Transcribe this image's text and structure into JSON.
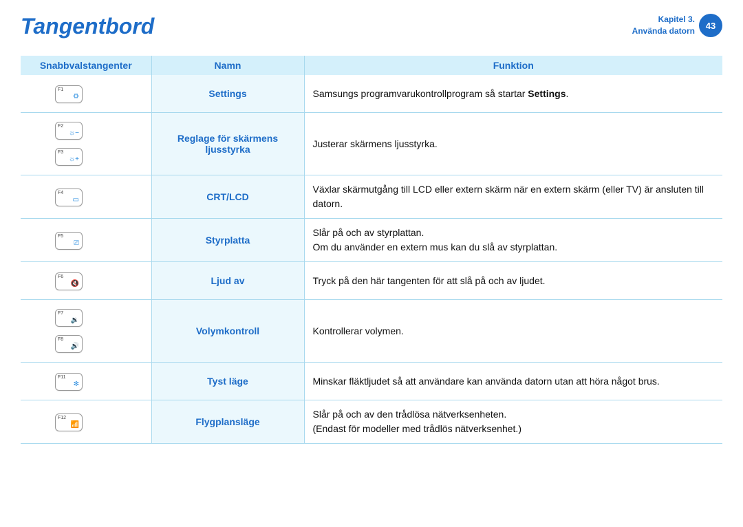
{
  "header": {
    "title": "Tangentbord",
    "chapter_line1": "Kapitel 3.",
    "chapter_line2": "Använda datorn",
    "page_number": "43"
  },
  "table": {
    "columns": {
      "keys": "Snabbvalstangenter",
      "name": "Namn",
      "func": "Funktion"
    },
    "colors": {
      "header_bg": "#d4f0fb",
      "name_bg": "#ebf8fd",
      "accent": "#1e6dc8",
      "border": "#a8d9ee",
      "key_icon": "#2a8de0"
    },
    "rows": [
      {
        "keys": [
          {
            "label": "F1",
            "icon": "⚙"
          }
        ],
        "name": "Settings",
        "func_pre": "Samsungs programvarukontrollprogram så startar ",
        "func_bold": "Settings",
        "func_post": "."
      },
      {
        "keys": [
          {
            "label": "F2",
            "icon": "☼−"
          },
          {
            "label": "F3",
            "icon": "☼+"
          }
        ],
        "name": "Reglage för skärmens ljusstyrka",
        "func": "Justerar skärmens ljusstyrka."
      },
      {
        "keys": [
          {
            "label": "F4",
            "icon": "▭"
          }
        ],
        "name": "CRT/LCD",
        "func": "Växlar skärmutgång till LCD eller extern skärm när en extern skärm (eller TV) är ansluten till datorn."
      },
      {
        "keys": [
          {
            "label": "F5",
            "icon": "⎚"
          }
        ],
        "name": "Styrplatta",
        "func_line1": "Slår på och av styrplattan.",
        "func_line2": "Om du använder en extern mus kan du slå av styrplattan."
      },
      {
        "keys": [
          {
            "label": "F6",
            "icon": "🔇"
          }
        ],
        "name": "Ljud av",
        "func": "Tryck på den här tangenten för att slå på och av ljudet."
      },
      {
        "keys": [
          {
            "label": "F7",
            "icon": "🔉"
          },
          {
            "label": "F8",
            "icon": "🔊"
          }
        ],
        "name": "Volymkontroll",
        "func": "Kontrollerar volymen."
      },
      {
        "keys": [
          {
            "label": "F11",
            "icon": "✻"
          }
        ],
        "name": "Tyst läge",
        "func": "Minskar fläktljudet så att användare kan använda datorn utan att höra något brus."
      },
      {
        "keys": [
          {
            "label": "F12",
            "icon": "📶"
          }
        ],
        "name": "Flygplansläge",
        "func_line1": "Slår på och av den trådlösa nätverksenheten.",
        "func_line2": "(Endast för modeller med trådlös nätverksenhet.)"
      }
    ]
  }
}
